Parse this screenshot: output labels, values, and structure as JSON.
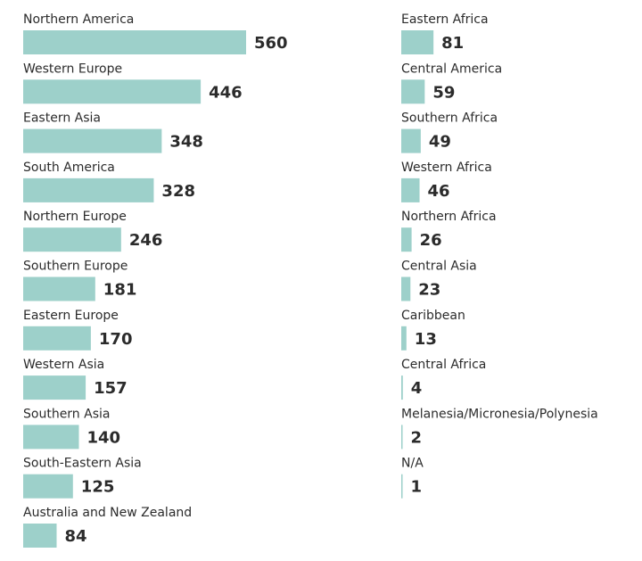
{
  "chart_data": {
    "type": "bar",
    "orientation": "horizontal",
    "color": "#9dd0ca",
    "categories": [
      "Northern America",
      "Western Europe",
      "Eastern Asia",
      "South America",
      "Northern Europe",
      "Southern Europe",
      "Eastern Europe",
      "Western Asia",
      "Southern Asia",
      "South-Eastern Asia",
      "Australia and New Zealand",
      "Eastern Africa",
      "Central America",
      "Southern Africa",
      "Western Africa",
      "Northern Africa",
      "Central Asia",
      "Caribbean",
      "Central Africa",
      "Melanesia/Micronesia/Polynesia",
      "N/A"
    ],
    "values": [
      560,
      446,
      348,
      328,
      246,
      181,
      170,
      157,
      140,
      125,
      84,
      81,
      59,
      49,
      46,
      26,
      23,
      13,
      4,
      2,
      1
    ]
  }
}
